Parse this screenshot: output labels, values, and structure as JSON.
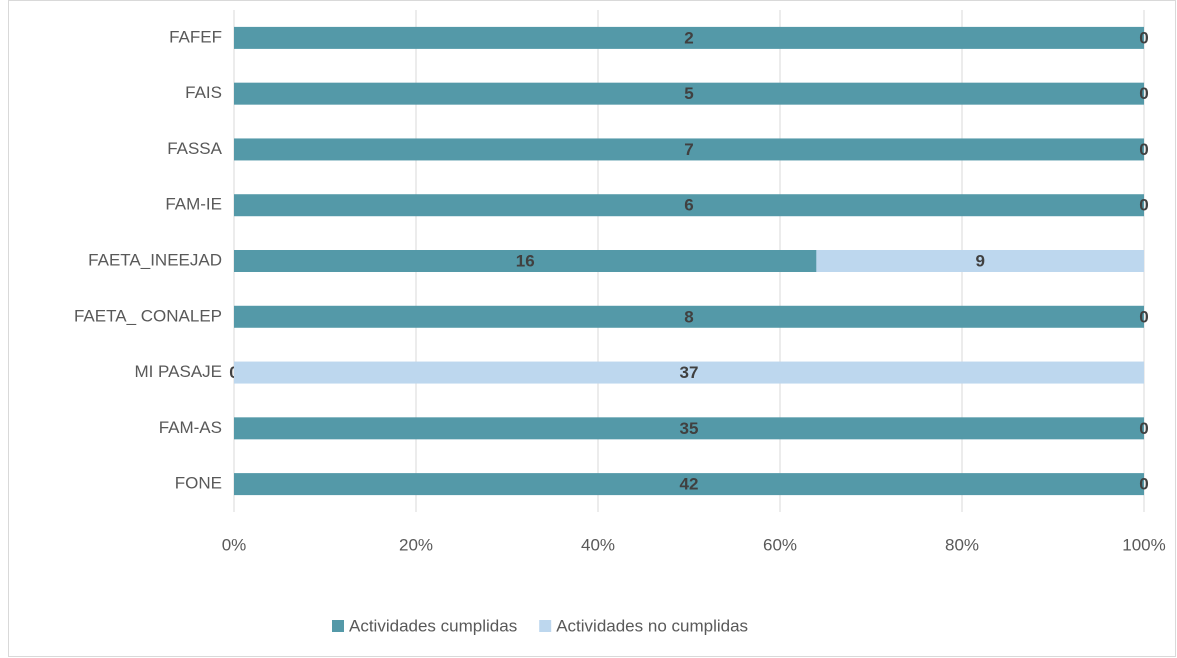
{
  "chart_data": {
    "type": "bar",
    "orientation": "horizontal",
    "stack": "percent",
    "categories": [
      "FAFEF",
      "FAIS",
      "FASSA",
      "FAM-IE",
      "FAETA_INEEJAD",
      "FAETA_ CONALEP",
      "MI PASAJE",
      "FAM-AS",
      "FONE"
    ],
    "series": [
      {
        "name": "Actividades cumplidas",
        "color": "#5499a8",
        "values": [
          2,
          5,
          7,
          6,
          16,
          8,
          0,
          35,
          42
        ]
      },
      {
        "name": "Actividades no cumplidas",
        "color": "#bdd7ee",
        "values": [
          0,
          0,
          0,
          0,
          9,
          0,
          37,
          0,
          0
        ]
      }
    ],
    "xlim": [
      0,
      100
    ],
    "xticks": [
      {
        "value": 0,
        "label": "0%"
      },
      {
        "value": 20,
        "label": "20%"
      },
      {
        "value": 40,
        "label": "40%"
      },
      {
        "value": 60,
        "label": "60%"
      },
      {
        "value": 80,
        "label": "80%"
      },
      {
        "value": 100,
        "label": "100%"
      }
    ],
    "grid": true,
    "legend": "bottom"
  }
}
